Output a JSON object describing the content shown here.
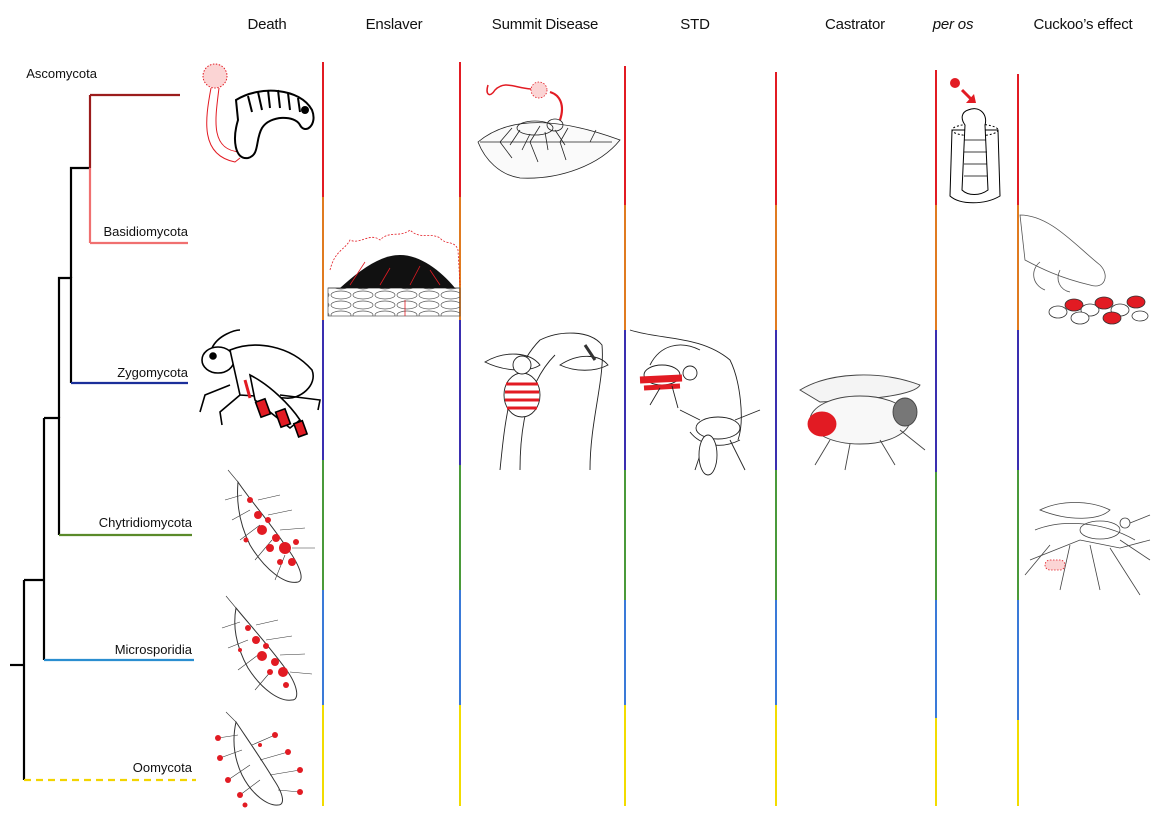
{
  "columns": [
    {
      "label": "Death",
      "italic": false
    },
    {
      "label": "Enslaver",
      "italic": false
    },
    {
      "label": "Summit Disease",
      "italic": false
    },
    {
      "label": "STD",
      "italic": false
    },
    {
      "label": "Castrator",
      "italic": false
    },
    {
      "label": "per os",
      "italic": true
    },
    {
      "label": "Cuckoo’s effect",
      "italic": false
    }
  ],
  "taxa": [
    {
      "name": "Ascomycota",
      "color": "#9b1c1c"
    },
    {
      "name": "Basidiomycota",
      "color": "#f07070"
    },
    {
      "name": "Zygomycota",
      "color": "#1b2f9a"
    },
    {
      "name": "Chytridiomycota",
      "color": "#5a8a2a"
    },
    {
      "name": "Microsporidia",
      "color": "#2a8ed0"
    },
    {
      "name": "Oomycota",
      "color": "#f2d400",
      "dashed": true
    }
  ],
  "segment_colors": [
    "#e21b23",
    "#e07b20",
    "#3a2fb0",
    "#4a9a3a",
    "#3a7ad8",
    "#f2dc00"
  ],
  "illustrations": [
    {
      "name": "ascomycota-caterpillar-death-illustration",
      "column": "Death",
      "taxon": "Ascomycota"
    },
    {
      "name": "ascomycota-ant-summit-illustration",
      "column": "Summit Disease",
      "taxon": "Ascomycota"
    },
    {
      "name": "ascomycota-larva-per-os-illustration",
      "column": "per os",
      "taxon": "Ascomycota"
    },
    {
      "name": "basidiomycota-enslaver-illustration",
      "column": "Enslaver",
      "taxon": "Basidiomycota"
    },
    {
      "name": "basidiomycota-cuckoo-illustration",
      "column": "Cuckoo’s effect",
      "taxon": "Basidiomycota"
    },
    {
      "name": "zygomycota-grasshopper-death-illustration",
      "column": "Death",
      "taxon": "Zygomycota"
    },
    {
      "name": "zygomycota-fly-summit-illustration",
      "column": "Summit Disease",
      "taxon": "Zygomycota"
    },
    {
      "name": "zygomycota-flies-std-illustration",
      "column": "STD",
      "taxon": "Zygomycota"
    },
    {
      "name": "zygomycota-fly-castrator-illustration",
      "column": "Castrator",
      "taxon": "Zygomycota"
    },
    {
      "name": "chytridiomycota-larva-death-illustration",
      "column": "Death",
      "taxon": "Chytridiomycota"
    },
    {
      "name": "chytridiomycota-mosquito-cuckoo-illustration",
      "column": "Cuckoo’s effect",
      "taxon": "Chytridiomycota"
    },
    {
      "name": "microsporidia-larva-death-illustration",
      "column": "Death",
      "taxon": "Microsporidia"
    },
    {
      "name": "oomycota-larva-death-illustration",
      "column": "Death",
      "taxon": "Oomycota"
    }
  ]
}
